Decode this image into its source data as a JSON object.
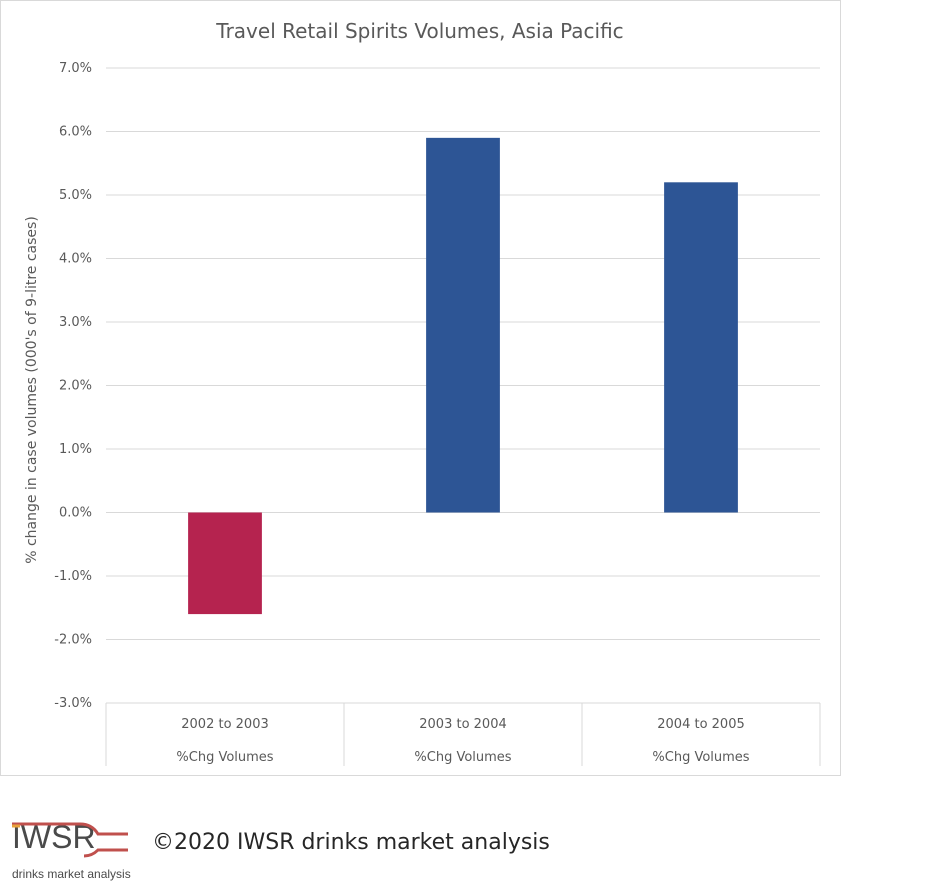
{
  "chart_data": {
    "type": "bar",
    "title": "Travel Retail Spirits Volumes, Asia Pacific",
    "ylabel": "% change in case volumes (000's of 9-litre cases)",
    "xlabel": "",
    "ylim": [
      -3.0,
      7.0
    ],
    "yticks": [
      "7.0%",
      "6.0%",
      "5.0%",
      "4.0%",
      "3.0%",
      "2.0%",
      "1.0%",
      "0.0%",
      "-1.0%",
      "-2.0%",
      "-3.0%"
    ],
    "ytick_values": [
      7,
      6,
      5,
      4,
      3,
      2,
      1,
      0,
      -1,
      -2,
      -3
    ],
    "categories": [
      "2002 to 2003",
      "2003 to 2004",
      "2004 to 2005"
    ],
    "category_sublabel": "%Chg Volumes",
    "values": [
      -1.6,
      5.9,
      5.2
    ],
    "bar_colors": [
      "#b5234f",
      "#2d5595",
      "#2d5595"
    ],
    "grid": true
  },
  "logo": {
    "brand": "IWSR",
    "tagline": "drinks market analysis",
    "colors": [
      "#c0504d",
      "#e9a23b",
      "#c0392b"
    ]
  },
  "footer": {
    "copyright": "©2020 IWSR drinks market analysis"
  }
}
